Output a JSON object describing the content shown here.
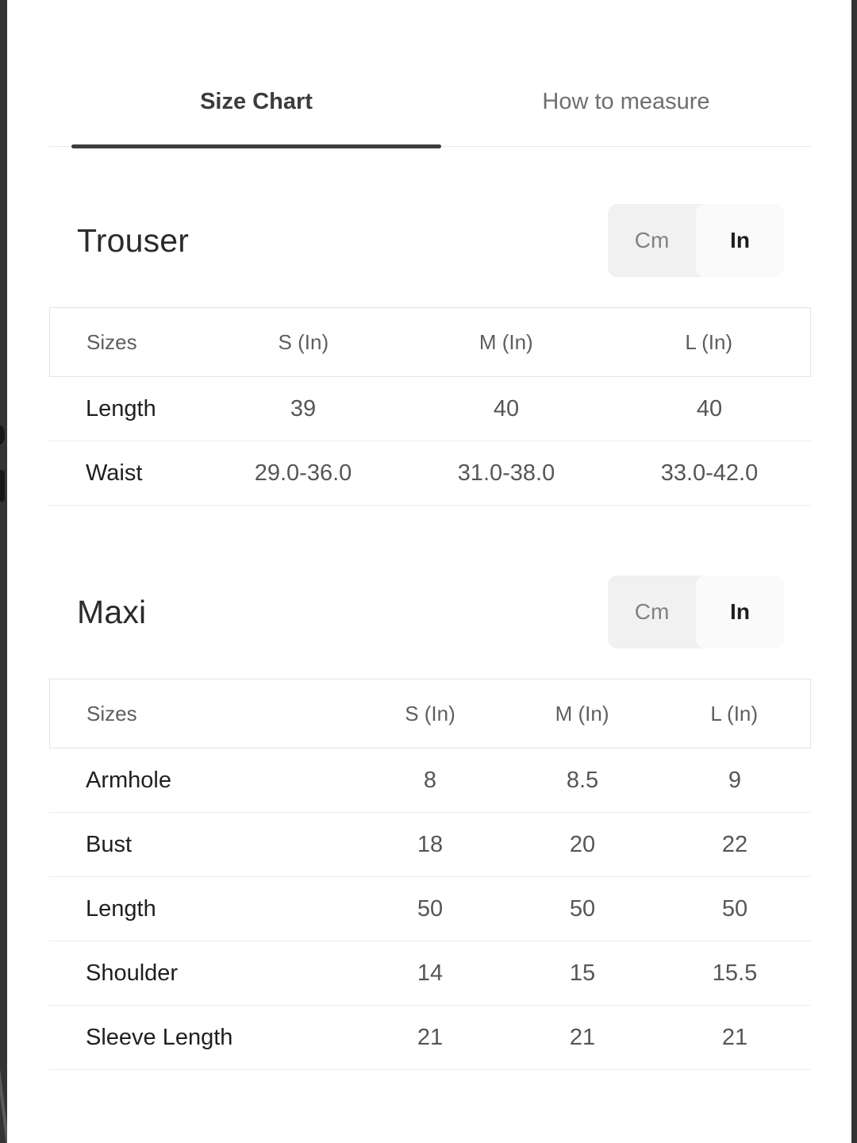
{
  "tabs": [
    {
      "label": "Size Chart",
      "active": true
    },
    {
      "label": "How to measure",
      "active": false
    }
  ],
  "sections": [
    {
      "title": "Trouser",
      "unit_toggle": {
        "options": [
          "Cm",
          "In"
        ],
        "selected": "In"
      },
      "table": {
        "headers": [
          "Sizes",
          "S (In)",
          "M (In)",
          "L (In)"
        ],
        "rows": [
          {
            "label": "Length",
            "values": [
              "39",
              "40",
              "40"
            ]
          },
          {
            "label": "Waist",
            "values": [
              "29.0-36.0",
              "31.0-38.0",
              "33.0-42.0"
            ]
          }
        ]
      }
    },
    {
      "title": "Maxi",
      "unit_toggle": {
        "options": [
          "Cm",
          "In"
        ],
        "selected": "In"
      },
      "table": {
        "headers": [
          "Sizes",
          "S (In)",
          "M (In)",
          "L (In)"
        ],
        "rows": [
          {
            "label": "Armhole",
            "values": [
              "8",
              "8.5",
              "9"
            ]
          },
          {
            "label": "Bust",
            "values": [
              "18",
              "20",
              "22"
            ]
          },
          {
            "label": "Length",
            "values": [
              "50",
              "50",
              "50"
            ]
          },
          {
            "label": "Shoulder",
            "values": [
              "14",
              "15",
              "15.5"
            ]
          },
          {
            "label": "Sleeve Length",
            "values": [
              "21",
              "21",
              "21"
            ]
          }
        ]
      }
    }
  ],
  "colors": {
    "tab_active": "#3d3d3d",
    "tab_inactive": "#6f6f6f",
    "title_text": "#2b2b2b",
    "table_border": "#e3e3e3",
    "row_separator": "#ececec",
    "toggle_track": "#f1f1f1",
    "toggle_selected_bg": "#fafafa",
    "page_edge": "#343436"
  }
}
